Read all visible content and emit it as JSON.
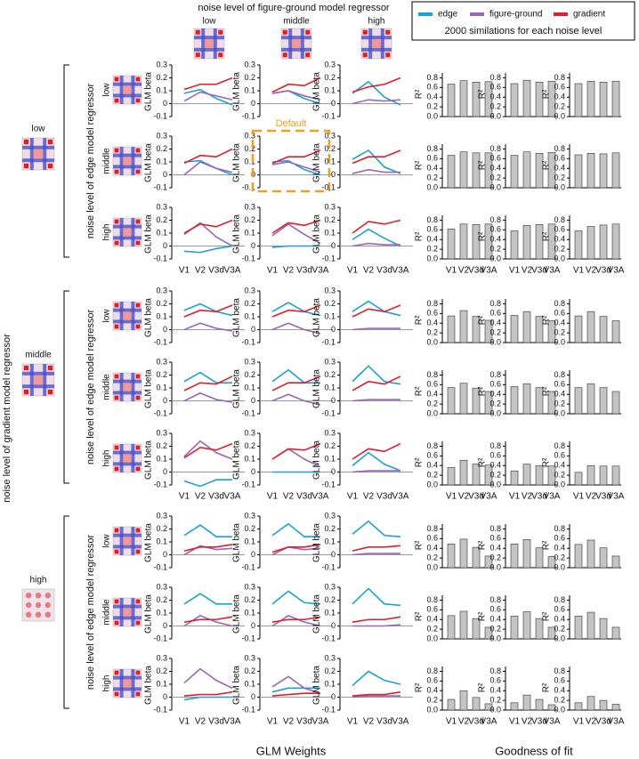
{
  "chart_data": {
    "type": "small-multiples",
    "top_title": "noise level of figure-ground model regressor",
    "levels": [
      "low",
      "middle",
      "high"
    ],
    "series": [
      {
        "name": "edge",
        "color": "#1ba1d7"
      },
      {
        "name": "figure-ground",
        "color": "#9966bb"
      },
      {
        "name": "gradient",
        "color": "#e31e2a"
      }
    ],
    "note": "2000 similations for each noise level",
    "row_title": "noise level of gradient model regressor",
    "block_title": "noise level of edge model regressor",
    "categories": [
      "V1",
      "V2",
      "V3d",
      "V3A"
    ],
    "line_ylabel": "GLM beta",
    "ylim": [
      -0.1,
      0.3
    ],
    "yticks": [
      -0.1,
      0,
      0.1,
      0.2,
      0.3
    ],
    "bar_ylabel": "R²",
    "bar_color": "#c4c4c4",
    "bar_ylim": [
      0,
      0.9
    ],
    "bar_yticks": [
      {
        "value": 0,
        "label": "0.0"
      },
      0.2,
      0.4,
      0.6,
      0.8
    ],
    "default_label": "Default",
    "xlabel_left": "GLM Weights",
    "xlabel_right": "Goodness of fit",
    "blocks": [
      {
        "rows": [
          {
            "panels": [
              {
                "lines": [
                  [
                    0.08,
                    0.11,
                    0.04,
                    -0.01
                  ],
                  [
                    0.02,
                    0.09,
                    0.06,
                    0.03
                  ],
                  [
                    0.11,
                    0.15,
                    0.15,
                    0.2
                  ]
                ],
                "r2": [
                  0.67,
                  0.74,
                  0.71,
                  0.72
                ]
              },
              {
                "lines": [
                  [
                    0.08,
                    0.1,
                    0.04,
                    0.0
                  ],
                  [
                    0.08,
                    0.1,
                    0.06,
                    0.03
                  ],
                  [
                    0.09,
                    0.15,
                    0.14,
                    0.2
                  ]
                ],
                "r2": [
                  0.68,
                  0.75,
                  0.71,
                  0.73
                ]
              },
              {
                "lines": [
                  [
                    0.08,
                    0.17,
                    0.05,
                    -0.01
                  ],
                  [
                    0.0,
                    0.03,
                    0.02,
                    0.03
                  ],
                  [
                    0.09,
                    0.13,
                    0.15,
                    0.2
                  ]
                ],
                "r2": [
                  0.68,
                  0.73,
                  0.71,
                  0.73
                ]
              }
            ]
          },
          {
            "panels": [
              {
                "lines": [
                  [
                    0.1,
                    0.11,
                    0.05,
                    0.0
                  ],
                  [
                    0.0,
                    0.1,
                    0.05,
                    0.02
                  ],
                  [
                    0.09,
                    0.15,
                    0.14,
                    0.2
                  ]
                ],
                "r2": [
                  0.67,
                  0.74,
                  0.72,
                  0.72
                ]
              },
              {
                "lines": [
                  [
                    0.1,
                    0.11,
                    0.04,
                    0.0
                  ],
                  [
                    0.08,
                    0.1,
                    0.06,
                    0.02
                  ],
                  [
                    0.09,
                    0.14,
                    0.14,
                    0.19
                  ]
                ],
                "r2": [
                  0.67,
                  0.74,
                  0.71,
                  0.73
                ]
              },
              {
                "lines": [
                  [
                    0.12,
                    0.19,
                    0.06,
                    0.01
                  ],
                  [
                    0.01,
                    0.04,
                    0.02,
                    0.02
                  ],
                  [
                    0.09,
                    0.14,
                    0.14,
                    0.19
                  ]
                ],
                "r2": [
                  0.68,
                  0.71,
                  0.7,
                  0.72
                ]
              }
            ]
          },
          {
            "panels": [
              {
                "lines": [
                  [
                    -0.04,
                    -0.05,
                    -0.02,
                    0.0
                  ],
                  [
                    0.09,
                    0.18,
                    0.07,
                    0.0
                  ],
                  [
                    0.1,
                    0.17,
                    0.15,
                    0.2
                  ]
                ],
                "r2": [
                  0.62,
                  0.72,
                  0.71,
                  0.72
                ]
              },
              {
                "lines": [
                  [
                    -0.01,
                    0.0,
                    0.0,
                    0.0
                  ],
                  [
                    0.08,
                    0.17,
                    0.09,
                    0.02
                  ],
                  [
                    0.1,
                    0.18,
                    0.16,
                    0.2
                  ]
                ],
                "r2": [
                  0.58,
                  0.69,
                  0.71,
                  0.72
                ]
              },
              {
                "lines": [
                  [
                    0.05,
                    0.13,
                    0.06,
                    0.0
                  ],
                  [
                    0.0,
                    0.02,
                    0.01,
                    0.01
                  ],
                  [
                    0.1,
                    0.19,
                    0.17,
                    0.2
                  ]
                ],
                "r2": [
                  0.58,
                  0.67,
                  0.7,
                  0.72
                ]
              }
            ]
          }
        ]
      },
      {
        "rows": [
          {
            "panels": [
              {
                "lines": [
                  [
                    0.15,
                    0.2,
                    0.14,
                    0.11
                  ],
                  [
                    0.0,
                    0.05,
                    0.01,
                    -0.01
                  ],
                  [
                    0.1,
                    0.15,
                    0.14,
                    0.19
                  ]
                ],
                "r2": [
                  0.55,
                  0.66,
                  0.54,
                  0.46
                ]
              },
              {
                "lines": [
                  [
                    0.14,
                    0.21,
                    0.14,
                    0.11
                  ],
                  [
                    0.0,
                    0.05,
                    0.0,
                    -0.03
                  ],
                  [
                    0.1,
                    0.15,
                    0.14,
                    0.19
                  ]
                ],
                "r2": [
                  0.56,
                  0.64,
                  0.54,
                  0.45
                ]
              },
              {
                "lines": [
                  [
                    0.14,
                    0.22,
                    0.14,
                    0.11
                  ],
                  [
                    0.0,
                    0.01,
                    0.01,
                    0.01
                  ],
                  [
                    0.1,
                    0.16,
                    0.14,
                    0.19
                  ]
                ],
                "r2": [
                  0.55,
                  0.64,
                  0.54,
                  0.45
                ]
              }
            ]
          },
          {
            "panels": [
              {
                "lines": [
                  [
                    0.15,
                    0.22,
                    0.14,
                    0.14
                  ],
                  [
                    0.0,
                    0.06,
                    0.01,
                    -0.01
                  ],
                  [
                    0.08,
                    0.14,
                    0.13,
                    0.19
                  ]
                ],
                "r2": [
                  0.54,
                  0.63,
                  0.53,
                  0.46
                ]
              },
              {
                "lines": [
                  [
                    0.15,
                    0.24,
                    0.14,
                    0.14
                  ],
                  [
                    0.0,
                    0.05,
                    0.0,
                    -0.03
                  ],
                  [
                    0.08,
                    0.14,
                    0.14,
                    0.19
                  ]
                ],
                "r2": [
                  0.56,
                  0.62,
                  0.54,
                  0.46
                ]
              },
              {
                "lines": [
                  [
                    0.15,
                    0.27,
                    0.15,
                    0.13
                  ],
                  [
                    0.0,
                    0.01,
                    0.01,
                    0.01
                  ],
                  [
                    0.08,
                    0.15,
                    0.13,
                    0.19
                  ]
                ],
                "r2": [
                  0.54,
                  0.62,
                  0.54,
                  0.46
                ]
              }
            ]
          },
          {
            "panels": [
              {
                "lines": [
                  [
                    -0.07,
                    -0.11,
                    -0.06,
                    -0.06
                  ],
                  [
                    0.12,
                    0.24,
                    0.15,
                    0.1
                  ],
                  [
                    0.11,
                    0.19,
                    0.17,
                    0.22
                  ]
                ],
                "r2": [
                  0.36,
                  0.51,
                  0.43,
                  0.41
                ]
              },
              {
                "lines": [
                  [
                    0.0,
                    0.0,
                    0.0,
                    0.0
                  ],
                  [
                    0.1,
                    0.18,
                    0.1,
                    0.04
                  ],
                  [
                    0.1,
                    0.18,
                    0.17,
                    0.22
                  ]
                ],
                "r2": [
                  0.29,
                  0.43,
                  0.4,
                  0.39
                ]
              },
              {
                "lines": [
                  [
                    0.05,
                    0.15,
                    0.06,
                    0.01
                  ],
                  [
                    0.0,
                    0.01,
                    0.01,
                    0.01
                  ],
                  [
                    0.1,
                    0.18,
                    0.16,
                    0.22
                  ]
                ],
                "r2": [
                  0.26,
                  0.4,
                  0.39,
                  0.39
                ]
              }
            ]
          }
        ]
      },
      {
        "rows": [
          {
            "panels": [
              {
                "lines": [
                  [
                    0.15,
                    0.23,
                    0.14,
                    0.14
                  ],
                  [
                    0.0,
                    0.07,
                    0.04,
                    0.05
                  ],
                  [
                    0.03,
                    0.06,
                    0.06,
                    0.08
                  ]
                ],
                "r2": [
                  0.49,
                  0.59,
                  0.42,
                  0.24
                ]
              },
              {
                "lines": [
                  [
                    0.15,
                    0.24,
                    0.14,
                    0.14
                  ],
                  [
                    0.0,
                    0.06,
                    0.04,
                    0.05
                  ],
                  [
                    0.02,
                    0.06,
                    0.06,
                    0.08
                  ]
                ],
                "r2": [
                  0.49,
                  0.58,
                  0.41,
                  0.23
                ]
              },
              {
                "lines": [
                  [
                    0.16,
                    0.26,
                    0.15,
                    0.14
                  ],
                  [
                    0.0,
                    0.01,
                    0.01,
                    0.01
                  ],
                  [
                    0.03,
                    0.06,
                    0.06,
                    0.07
                  ]
                ],
                "r2": [
                  0.48,
                  0.57,
                  0.41,
                  0.24
                ]
              }
            ]
          },
          {
            "panels": [
              {
                "lines": [
                  [
                    0.17,
                    0.25,
                    0.17,
                    0.17
                  ],
                  [
                    0.0,
                    0.08,
                    0.03,
                    0.0
                  ],
                  [
                    0.03,
                    0.05,
                    0.05,
                    0.07
                  ]
                ],
                "r2": [
                  0.48,
                  0.57,
                  0.42,
                  0.24
                ]
              },
              {
                "lines": [
                  [
                    0.17,
                    0.27,
                    0.18,
                    0.17
                  ],
                  [
                    0.0,
                    0.08,
                    0.03,
                    0.0
                  ],
                  [
                    0.03,
                    0.05,
                    0.05,
                    0.07
                  ]
                ],
                "r2": [
                  0.47,
                  0.56,
                  0.42,
                  0.24
                ]
              },
              {
                "lines": [
                  [
                    0.17,
                    0.29,
                    0.17,
                    0.16
                  ],
                  [
                    0.0,
                    0.0,
                    0.0,
                    0.01
                  ],
                  [
                    0.03,
                    0.05,
                    0.05,
                    0.07
                  ]
                ],
                "r2": [
                  0.47,
                  0.55,
                  0.42,
                  0.24
                ]
              }
            ]
          },
          {
            "panels": [
              {
                "lines": [
                  [
                    -0.02,
                    0.0,
                    0.0,
                    0.0
                  ],
                  [
                    0.11,
                    0.22,
                    0.13,
                    0.07
                  ],
                  [
                    0.01,
                    0.02,
                    0.02,
                    0.04
                  ]
                ],
                "r2": [
                  0.22,
                  0.4,
                  0.26,
                  0.13
                ]
              },
              {
                "lines": [
                  [
                    0.04,
                    0.07,
                    0.07,
                    0.07
                  ],
                  [
                    0.08,
                    0.16,
                    0.07,
                    0.03
                  ],
                  [
                    0.01,
                    0.02,
                    0.03,
                    0.03
                  ]
                ],
                "r2": [
                  0.15,
                  0.31,
                  0.22,
                  0.11
                ]
              },
              {
                "lines": [
                  [
                    0.09,
                    0.2,
                    0.13,
                    0.1
                  ],
                  [
                    0.0,
                    0.01,
                    0.01,
                    0.01
                  ],
                  [
                    0.01,
                    0.02,
                    0.02,
                    0.04
                  ]
                ],
                "r2": [
                  0.15,
                  0.28,
                  0.2,
                  0.12
                ]
              }
            ]
          }
        ]
      }
    ]
  }
}
